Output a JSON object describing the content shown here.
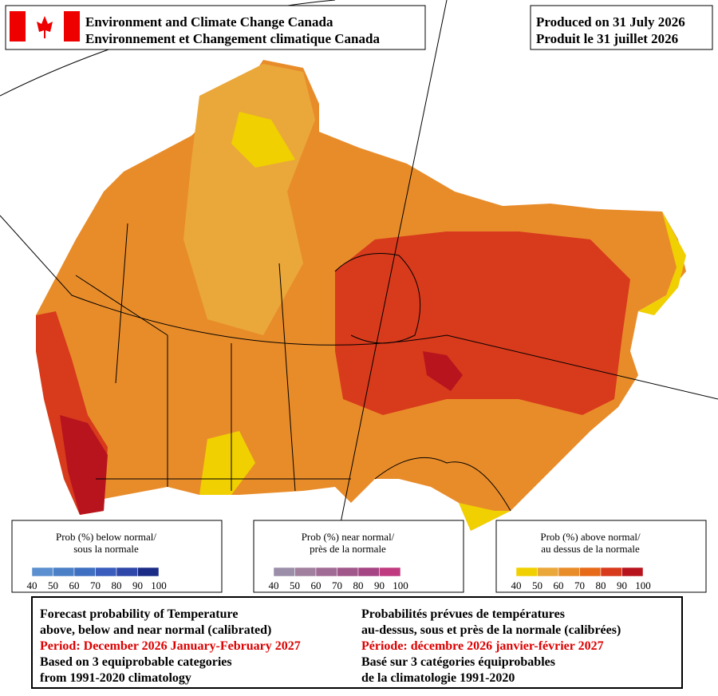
{
  "header": {
    "agency_en": "Environment and Climate Change Canada",
    "agency_fr": "Environnement et Changement climatique Canada",
    "produced_en": "Produced on 31 July 2026",
    "produced_fr": "Produit le 31 juillet 2026"
  },
  "legends": [
    {
      "title_en": "Prob (%) below normal/",
      "title_fr": "sous la normale",
      "labels": [
        40,
        50,
        60,
        70,
        80,
        90,
        100
      ],
      "colors": [
        "#5b8fcf",
        "#4b7fc6",
        "#3f6fc0",
        "#3a5cbc",
        "#2e47a8",
        "#1a2c86"
      ]
    },
    {
      "title_en": "Prob (%) near normal/",
      "title_fr": "près de la normale",
      "labels": [
        40,
        50,
        60,
        70,
        80,
        90,
        100
      ],
      "colors": [
        "#9a8ea8",
        "#a0809e",
        "#a06b94",
        "#a0578a",
        "#a54583",
        "#c03a80"
      ]
    },
    {
      "title_en": "Prob (%) above normal/",
      "title_fr": "au dessus de la normale",
      "labels": [
        40,
        50,
        60,
        70,
        80,
        90,
        100
      ],
      "colors": [
        "#f0d000",
        "#eaa83a",
        "#e88c2a",
        "#e66a18",
        "#d83a1c",
        "#b8141e"
      ]
    }
  ],
  "footer": {
    "en": [
      "Forecast probability of Temperature",
      "above, below and near normal (calibrated)",
      "Period: December 2026 January-February 2027",
      "Based on 3 equiprobable categories",
      " from 1991-2020 climatology"
    ],
    "fr": [
      "Probabilités prévues de températures",
      "au-dessus, sous et près de la normale (calibrées)",
      "Période: décembre 2026 janvier-février 2027",
      "Basé sur 3 catégories équiprobables",
      "de la climatologie 1991-2020"
    ]
  }
}
